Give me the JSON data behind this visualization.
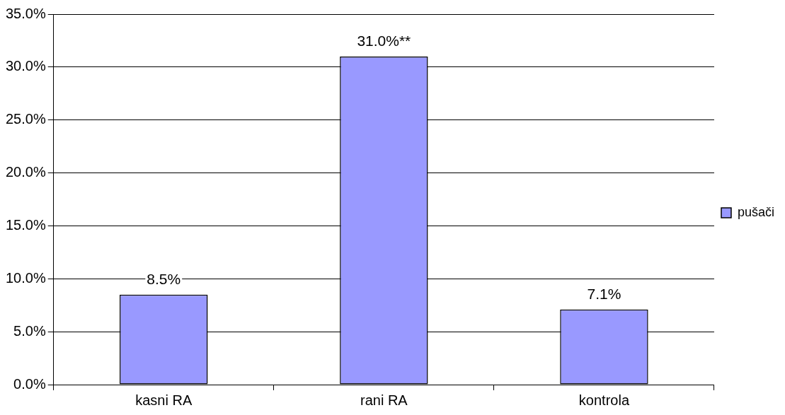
{
  "chart_data": {
    "type": "bar",
    "categories": [
      "kasni RA",
      "rani RA",
      "kontrola"
    ],
    "series": [
      {
        "name": "pušači",
        "color": "#9999ff",
        "values": [
          8.5,
          31.0,
          7.1
        ],
        "value_labels": [
          "8.5%",
          "31.0%**",
          "7.1%"
        ]
      }
    ],
    "ylim": [
      0,
      35
    ],
    "yticks": [
      {
        "value": 0,
        "label": "0.0%"
      },
      {
        "value": 5,
        "label": "5.0%"
      },
      {
        "value": 10,
        "label": "10.0%"
      },
      {
        "value": 15,
        "label": "15.0%"
      },
      {
        "value": 20,
        "label": "20.0%"
      },
      {
        "value": 25,
        "label": "25.0%"
      },
      {
        "value": 30,
        "label": "30.0%"
      },
      {
        "value": 35,
        "label": "35.0%"
      }
    ],
    "grid": "y",
    "legend": "right"
  }
}
